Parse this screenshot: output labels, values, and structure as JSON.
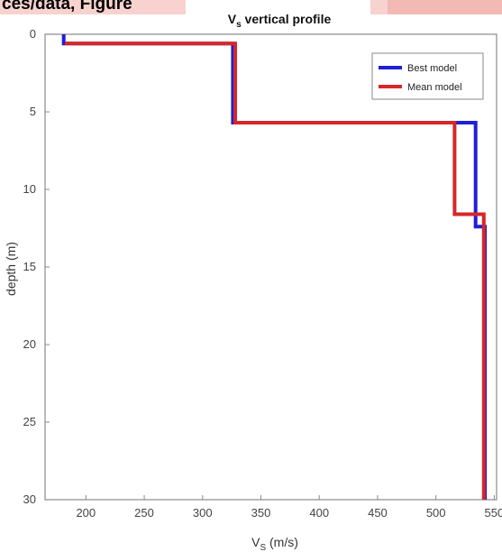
{
  "header": {
    "text": "ces/data, Figure"
  },
  "chart_data": {
    "type": "line",
    "title": "V",
    "title_sub": "s",
    "title_rest": " vertical profile",
    "xlabel": "V",
    "xlabel_sub": "S",
    "xlabel_rest": " (m/s)",
    "ylabel": "depth (m)",
    "xlim": [
      165,
      552
    ],
    "ylim": [
      0,
      30
    ],
    "y_inverted": true,
    "xticks": [
      200,
      250,
      300,
      350,
      400,
      450,
      500,
      550
    ],
    "yticks": [
      0,
      5,
      10,
      15,
      20,
      25,
      30
    ],
    "grid": false,
    "legend_position": "top-right",
    "series": [
      {
        "name": "Best model",
        "color": "#1f1fd6",
        "points": [
          [
            181,
            0
          ],
          [
            181,
            0.6
          ],
          [
            326,
            0.6
          ],
          [
            326,
            5.7
          ],
          [
            534,
            5.7
          ],
          [
            534,
            12.4
          ],
          [
            542,
            12.4
          ],
          [
            542,
            30
          ]
        ]
      },
      {
        "name": "Mean model",
        "color": "#d62728",
        "points": [
          [
            182,
            0.6
          ],
          [
            328,
            0.6
          ],
          [
            328,
            5.7
          ],
          [
            516,
            5.7
          ],
          [
            516,
            11.6
          ],
          [
            541,
            11.6
          ],
          [
            541,
            30
          ]
        ]
      }
    ]
  }
}
